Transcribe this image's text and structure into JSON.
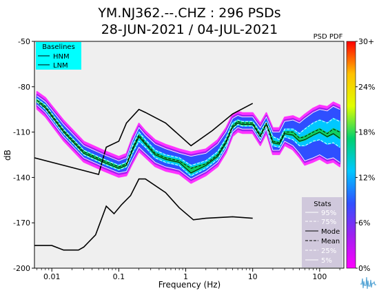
{
  "chart_data": {
    "type": "heatmap",
    "title_line1": "YM.NJ362.--.CHZ : 296 PSDs",
    "title_line2": "28-JUN-2021 / 04-JUL-2021",
    "xlabel": "Frequency (Hz)",
    "ylabel": "dB",
    "x_scale": "log",
    "xlim": [
      0.0055,
      230
    ],
    "ylim": [
      -200,
      -50
    ],
    "x_ticks": [
      {
        "value": 0.01,
        "label": "0.01"
      },
      {
        "value": 0.1,
        "label": "0.1"
      },
      {
        "value": 1,
        "label": "1"
      },
      {
        "value": 10,
        "label": "10"
      },
      {
        "value": 100,
        "label": "100"
      }
    ],
    "y_ticks": [
      {
        "value": -50,
        "label": "-50"
      },
      {
        "value": -80,
        "label": "-80"
      },
      {
        "value": -110,
        "label": "-110"
      },
      {
        "value": -140,
        "label": "-140"
      },
      {
        "value": -170,
        "label": "-170"
      },
      {
        "value": -200,
        "label": "-200"
      }
    ],
    "grid": false,
    "colorbar": {
      "title": "PSD PDF",
      "range_percent": [
        0,
        30
      ],
      "ticks": [
        {
          "value": 30,
          "label": "30+"
        },
        {
          "value": 24,
          "label": "24%"
        },
        {
          "value": 18,
          "label": "18%"
        },
        {
          "value": 12,
          "label": "12%"
        },
        {
          "value": 6,
          "label": "6%"
        },
        {
          "value": 0,
          "label": "0%"
        }
      ],
      "stops": [
        "#ff00ff",
        "#a020f0",
        "#3050ff",
        "#00c8ff",
        "#00d070",
        "#e0ff00",
        "#ffc000",
        "#ff0000"
      ]
    },
    "baselines_legend": {
      "title": "Baselines",
      "items": [
        "HNM",
        "LNM"
      ],
      "placement": "top-left",
      "background": "#00ffff"
    },
    "stats_legend": {
      "title": "Stats",
      "items": [
        "95%",
        "75%",
        "Mode",
        "Mean",
        "25%",
        "5%"
      ],
      "placement": "bottom-right",
      "background": "#d0c8dc"
    },
    "series": [
      {
        "name": "HNM",
        "x": [
          0.0055,
          0.05,
          0.065,
          0.1,
          0.13,
          0.2,
          0.25,
          0.5,
          1.2,
          2.5,
          5,
          10
        ],
        "y": [
          -127,
          -138,
          -120,
          -116,
          -104,
          -95,
          -97,
          -104,
          -119,
          -109,
          -98,
          -91
        ]
      },
      {
        "name": "LNM",
        "x": [
          0.0055,
          0.01,
          0.015,
          0.025,
          0.03,
          0.045,
          0.065,
          0.085,
          0.11,
          0.15,
          0.2,
          0.25,
          0.5,
          0.8,
          1.3,
          2,
          5,
          10
        ],
        "y": [
          -185,
          -185,
          -188,
          -188,
          -186,
          -178,
          -159,
          -164,
          -158,
          -152,
          -141,
          -141,
          -150,
          -160,
          -168,
          -167,
          -166,
          -167
        ]
      },
      {
        "name": "Mode",
        "x": [
          0.006,
          0.008,
          0.015,
          0.03,
          0.06,
          0.1,
          0.13,
          0.16,
          0.2,
          0.25,
          0.35,
          0.5,
          0.8,
          1.2,
          2,
          3,
          4,
          5,
          6,
          7,
          8,
          10,
          13,
          16,
          20,
          25,
          30,
          40,
          50,
          60,
          80,
          100,
          130,
          160,
          200
        ],
        "y": [
          -90,
          -94,
          -110,
          -124,
          -130,
          -134,
          -132,
          -122,
          -113,
          -118,
          -125,
          -128,
          -130,
          -137,
          -132,
          -126,
          -117,
          -107,
          -104,
          -105,
          -105,
          -105,
          -113,
          -105,
          -117,
          -118,
          -111,
          -112,
          -116,
          -115,
          -112,
          -110,
          -113,
          -111,
          -114
        ]
      },
      {
        "name": "Mean",
        "x": [
          0.006,
          0.008,
          0.015,
          0.03,
          0.06,
          0.1,
          0.13,
          0.16,
          0.2,
          0.25,
          0.35,
          0.5,
          0.8,
          1.2,
          2,
          3,
          4,
          5,
          6,
          7,
          8,
          10,
          13,
          16,
          20,
          25,
          30,
          40,
          50,
          60,
          80,
          100,
          130,
          160,
          200
        ],
        "y": [
          -89,
          -93,
          -109,
          -123,
          -129,
          -133,
          -131,
          -121,
          -112,
          -117,
          -124,
          -127,
          -129,
          -134,
          -131,
          -125,
          -116,
          -106,
          -103,
          -104,
          -104,
          -104,
          -112,
          -104,
          -116,
          -117,
          -110,
          -110,
          -114,
          -113,
          -110,
          -108,
          -111,
          -108,
          -110
        ]
      },
      {
        "name": "95%",
        "x": [
          0.006,
          0.008,
          0.015,
          0.03,
          0.06,
          0.1,
          0.13,
          0.16,
          0.2,
          0.25,
          0.35,
          0.5,
          0.8,
          1.2,
          2,
          3,
          4,
          5,
          6,
          7,
          8,
          10,
          13,
          16,
          20,
          25,
          30,
          40,
          50,
          60,
          80,
          100,
          130,
          160,
          200
        ],
        "y": [
          -86,
          -90,
          -105,
          -119,
          -125,
          -129,
          -127,
          -116,
          -107,
          -112,
          -118,
          -121,
          -124,
          -126,
          -124,
          -118,
          -110,
          -101,
          -99,
          -100,
          -100,
          -100,
          -107,
          -100,
          -110,
          -110,
          -103,
          -102,
          -104,
          -101,
          -97,
          -95,
          -96,
          -93,
          -95
        ]
      },
      {
        "name": "75%",
        "x": [
          0.006,
          0.008,
          0.015,
          0.03,
          0.06,
          0.1,
          0.13,
          0.16,
          0.2,
          0.25,
          0.35,
          0.5,
          0.8,
          1.2,
          2,
          3,
          4,
          5,
          6,
          7,
          8,
          10,
          13,
          16,
          20,
          25,
          30,
          40,
          50,
          60,
          80,
          100,
          130,
          160,
          200
        ],
        "y": [
          -88,
          -92,
          -108,
          -122,
          -128,
          -132,
          -130,
          -119,
          -110,
          -115,
          -122,
          -125,
          -127,
          -132,
          -129,
          -123,
          -114,
          -104,
          -102,
          -103,
          -103,
          -103,
          -110,
          -103,
          -113,
          -115,
          -108,
          -108,
          -111,
          -108,
          -104,
          -102,
          -104,
          -101,
          -103
        ]
      },
      {
        "name": "25%",
        "x": [
          0.006,
          0.008,
          0.015,
          0.03,
          0.06,
          0.1,
          0.13,
          0.16,
          0.2,
          0.25,
          0.35,
          0.5,
          0.8,
          1.2,
          2,
          3,
          4,
          5,
          6,
          7,
          8,
          10,
          13,
          16,
          20,
          25,
          30,
          40,
          50,
          60,
          80,
          100,
          130,
          160,
          200
        ],
        "y": [
          -90,
          -95,
          -111,
          -125,
          -131,
          -135,
          -133,
          -124,
          -116,
          -120,
          -127,
          -130,
          -132,
          -139,
          -134,
          -128,
          -119,
          -108,
          -105,
          -106,
          -106,
          -106,
          -114,
          -106,
          -119,
          -120,
          -113,
          -115,
          -119,
          -119,
          -116,
          -115,
          -118,
          -117,
          -120
        ]
      },
      {
        "name": "5%",
        "x": [
          0.006,
          0.008,
          0.015,
          0.03,
          0.06,
          0.1,
          0.13,
          0.16,
          0.2,
          0.25,
          0.35,
          0.5,
          0.8,
          1.2,
          2,
          3,
          4,
          5,
          6,
          7,
          8,
          10,
          13,
          16,
          20,
          25,
          30,
          40,
          50,
          60,
          80,
          100,
          130,
          160,
          200
        ],
        "y": [
          -92,
          -97,
          -113,
          -127,
          -133,
          -137,
          -136,
          -128,
          -120,
          -124,
          -130,
          -133,
          -135,
          -141,
          -136,
          -130,
          -121,
          -110,
          -107,
          -108,
          -108,
          -108,
          -116,
          -108,
          -122,
          -122,
          -116,
          -119,
          -124,
          -129,
          -127,
          -125,
          -128,
          -127,
          -130
        ]
      }
    ]
  }
}
